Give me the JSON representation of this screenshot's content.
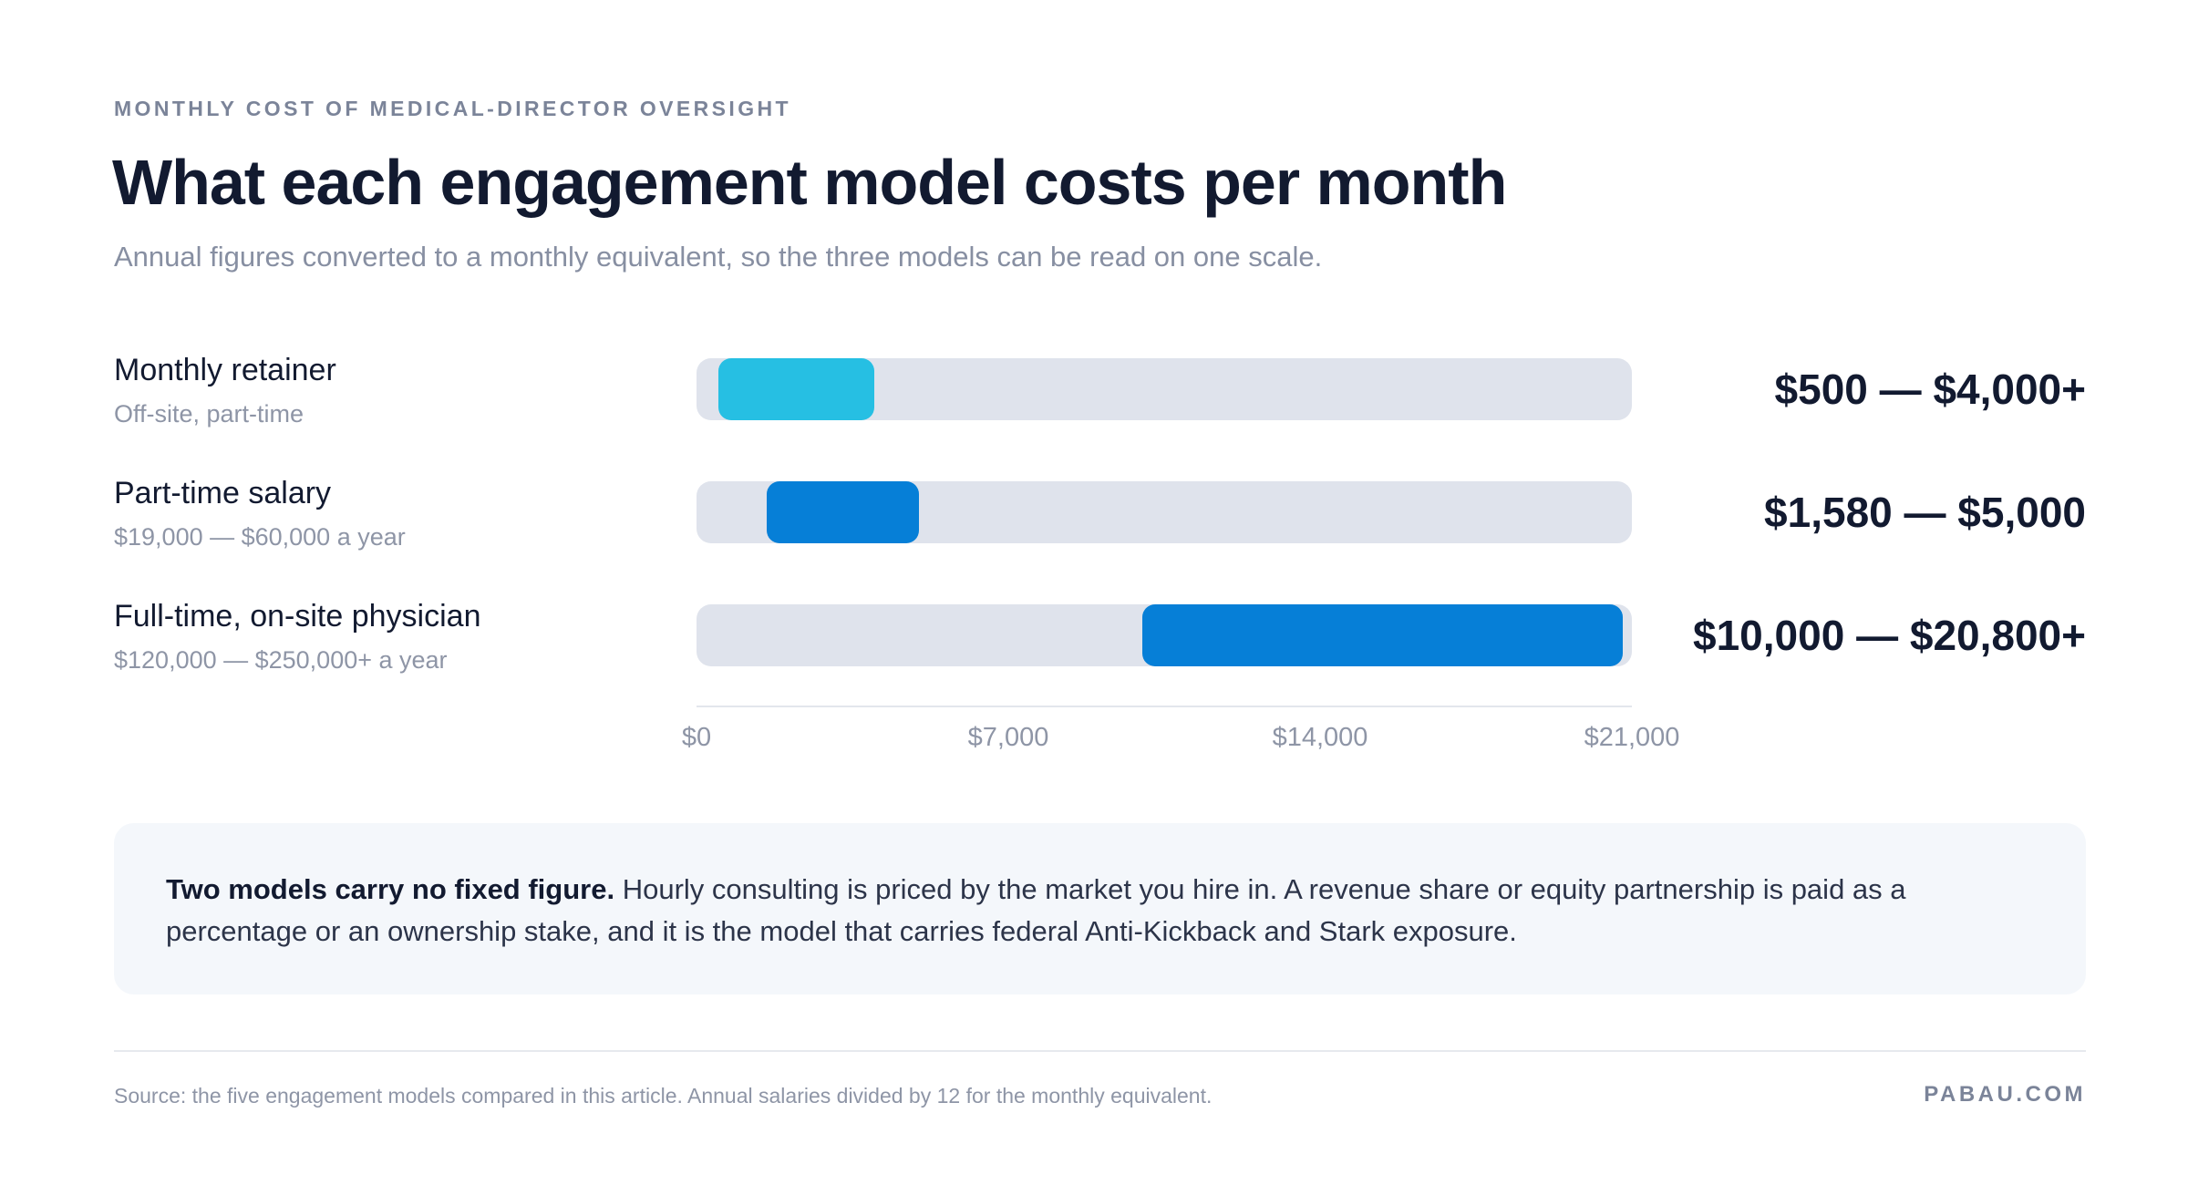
{
  "header": {
    "eyebrow": "MONTHLY COST OF MEDICAL-DIRECTOR OVERSIGHT",
    "title": "What each engagement model costs per month",
    "subtitle": "Annual figures converted to a monthly equivalent, so the three models can be read on one scale."
  },
  "chart_data": {
    "type": "bar",
    "orientation": "horizontal-range",
    "xlim": [
      0,
      21000
    ],
    "ticks": [
      {
        "value": 0,
        "label": "$0"
      },
      {
        "value": 7000,
        "label": "$7,000"
      },
      {
        "value": 14000,
        "label": "$14,000"
      },
      {
        "value": 21000,
        "label": "$21,000"
      }
    ],
    "rows": [
      {
        "label": "Monthly retainer",
        "sublabel": "Off-site, part-time",
        "low": 500,
        "high": 4000,
        "range_label": "$500 — $4,000+",
        "color": "#26bfe3"
      },
      {
        "label": "Part-time salary",
        "sublabel": "$19,000 — $60,000 a year",
        "low": 1580,
        "high": 5000,
        "range_label": "$1,580 — $5,000",
        "color": "#067fd7"
      },
      {
        "label": "Full-time, on-site physician",
        "sublabel": "$120,000 — $250,000+ a year",
        "low": 10000,
        "high": 20800,
        "range_label": "$10,000 — $20,800+",
        "color": "#067fd7"
      }
    ]
  },
  "note": {
    "lead": "Two models carry no fixed figure.",
    "body": " Hourly consulting is priced by the market you hire in. A revenue share or equity partnership is paid as a percentage or an ownership stake, and it is the model that carries federal Anti-Kickback and Stark exposure."
  },
  "footer": {
    "source": "Source: the five engagement models compared in this article. Annual salaries divided by 12 for the monthly equivalent.",
    "brand": "PABAU.COM"
  }
}
